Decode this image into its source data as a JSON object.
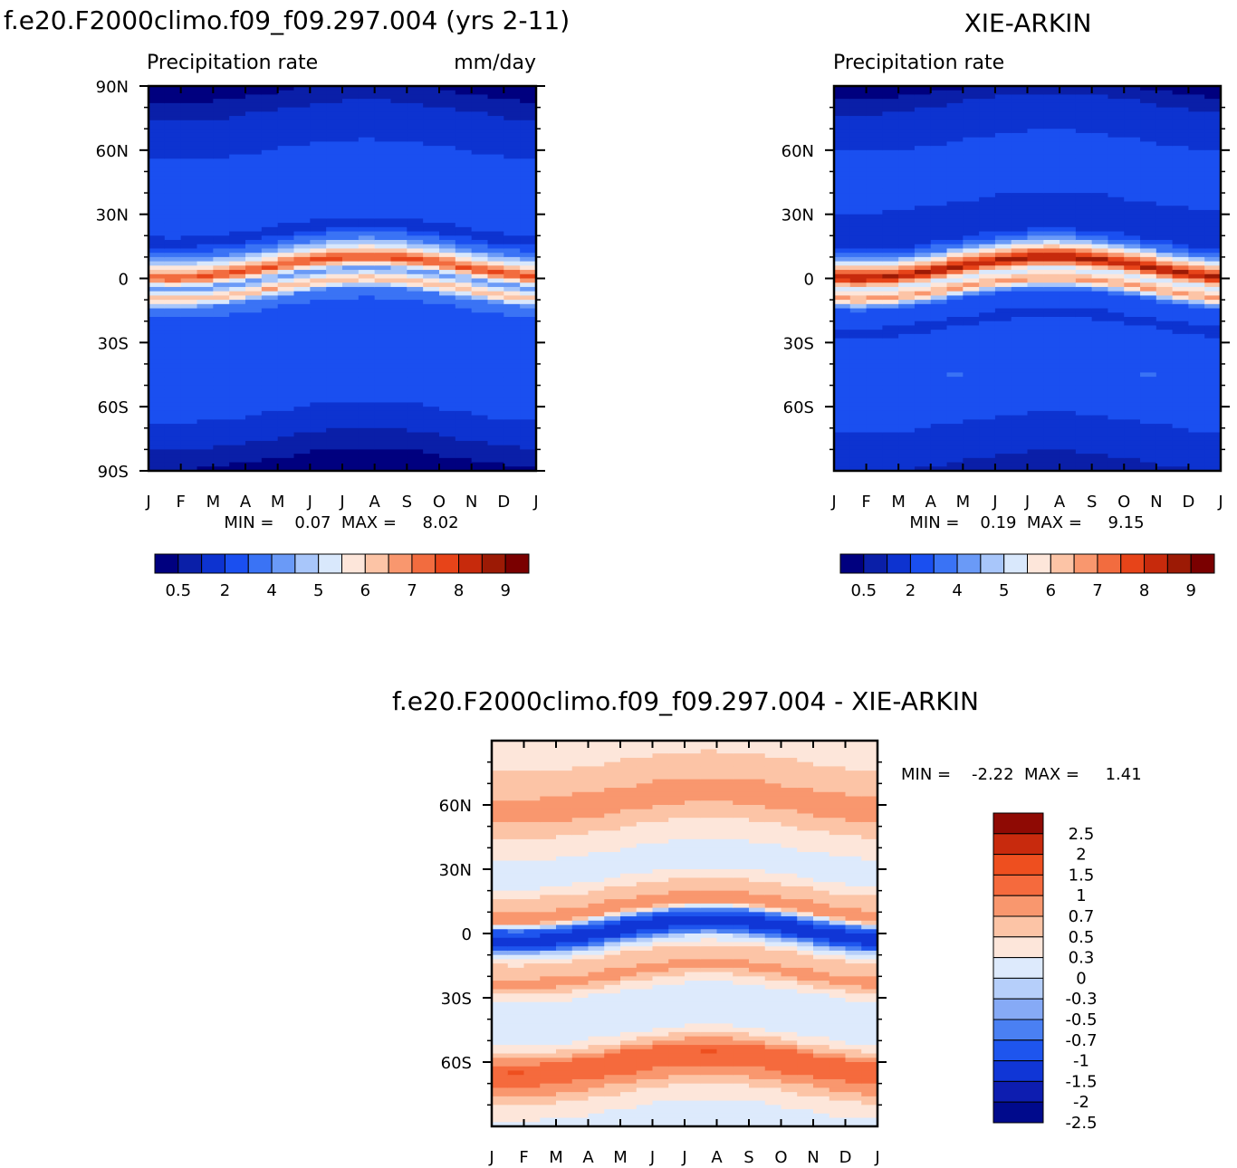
{
  "colors": {
    "precip_scale": [
      "#00007f",
      "#0a1fa8",
      "#0d33d0",
      "#1a4ff0",
      "#3a73f5",
      "#6a9af7",
      "#a8c6fa",
      "#d9e8fc",
      "#fde6da",
      "#fcc4a6",
      "#f9976e",
      "#f26c3f",
      "#e74419",
      "#c72a0c",
      "#9c1a05",
      "#7a0000"
    ],
    "diff_scale": [
      "#000a8c",
      "#0d1db0",
      "#1036d6",
      "#1e55ee",
      "#4a80f3",
      "#86aaf6",
      "#b6cffa",
      "#ddeafc",
      "#fde6da",
      "#fcc4a6",
      "#f9976e",
      "#f56a3d",
      "#ee4f1f",
      "#c82a0d",
      "#8f0a04"
    ],
    "frame": "#000000"
  },
  "chart_data": [
    {
      "id": "model",
      "type": "heatmap",
      "title": "f.e20.F2000climo.f09_f09.297.004 (yrs 2-11)",
      "subtitle_left": "Precipitation rate",
      "subtitle_right": "mm/day",
      "x_ticks": [
        "J",
        "F",
        "M",
        "A",
        "M",
        "J",
        "J",
        "A",
        "S",
        "O",
        "N",
        "D",
        "J"
      ],
      "y_ticks": [
        "90N",
        "60N",
        "30N",
        "0",
        "30S",
        "60S",
        "90S"
      ],
      "stats_text": "MIN =    0.07  MAX =     8.02",
      "min": 0.07,
      "max": 8.02,
      "colorbar_labels": [
        "0.5",
        "2",
        "4",
        "5",
        "6",
        "7",
        "8",
        "9"
      ],
      "color_levels": [
        0.5,
        1,
        2,
        3,
        4,
        4.5,
        5,
        5.5,
        6,
        6.5,
        7,
        7.5,
        8,
        8.5,
        9
      ],
      "latitude_profile": {
        "lat": [
          90,
          75,
          60,
          45,
          30,
          20,
          10,
          5,
          0,
          -5,
          -10,
          -20,
          -30,
          -45,
          -60,
          -75,
          -90
        ],
        "value": [
          0.3,
          1.2,
          2.0,
          2.7,
          2.3,
          1.8,
          5.5,
          7.8,
          4.0,
          6.5,
          3.5,
          2.2,
          2.3,
          2.8,
          2.2,
          1.0,
          0.2
        ]
      }
    },
    {
      "id": "obs",
      "type": "heatmap",
      "title": "XIE-ARKIN",
      "subtitle_left": "Precipitation rate",
      "subtitle_right": "",
      "x_ticks": [
        "J",
        "F",
        "M",
        "A",
        "M",
        "J",
        "J",
        "A",
        "S",
        "O",
        "N",
        "D",
        "J"
      ],
      "y_ticks": [
        "60N",
        "30N",
        "0",
        "30S",
        "60S"
      ],
      "stats_text": "MIN =    0.19  MAX =     9.15",
      "min": 0.19,
      "max": 9.15,
      "colorbar_labels": [
        "0.5",
        "2",
        "4",
        "5",
        "6",
        "7",
        "8",
        "9"
      ],
      "color_levels": [
        0.5,
        1,
        2,
        3,
        4,
        4.5,
        5,
        5.5,
        6,
        6.5,
        7,
        7.5,
        8,
        8.5,
        9
      ],
      "latitude_profile": {
        "lat": [
          90,
          75,
          60,
          45,
          30,
          20,
          10,
          5,
          0,
          -5,
          -10,
          -20,
          -30,
          -45,
          -60,
          -75,
          -90
        ],
        "value": [
          0.4,
          1.5,
          2.2,
          2.5,
          1.7,
          1.3,
          6.0,
          8.8,
          5.0,
          6.8,
          3.0,
          1.8,
          2.5,
          3.0,
          2.5,
          1.5,
          0.8
        ]
      }
    },
    {
      "id": "diff",
      "type": "heatmap",
      "title": "f.e20.F2000climo.f09_f09.297.004 - XIE-ARKIN",
      "subtitle_left": "",
      "subtitle_right": "",
      "x_ticks": [
        "J",
        "F",
        "M",
        "A",
        "M",
        "J",
        "J",
        "A",
        "S",
        "O",
        "N",
        "D",
        "J"
      ],
      "y_ticks": [
        "60N",
        "30N",
        "0",
        "30S",
        "60S"
      ],
      "stats_text": "MIN =    -2.22  MAX =     1.41",
      "min": -2.22,
      "max": 1.41,
      "colorbar_labels": [
        "2.5",
        "2",
        "1.5",
        "1",
        "0.7",
        "0.5",
        "0.3",
        "0",
        "-0.3",
        "-0.5",
        "-0.7",
        "-1",
        "-1.5",
        "-2",
        "-2.5"
      ],
      "color_levels": [
        -2.5,
        -2,
        -1.5,
        -1,
        -0.7,
        -0.5,
        -0.3,
        0,
        0.3,
        0.5,
        0.7,
        1,
        1.5,
        2,
        2.5
      ],
      "latitude_profile": {
        "lat": [
          90,
          75,
          60,
          45,
          30,
          20,
          10,
          5,
          0,
          -5,
          -10,
          -20,
          -30,
          -45,
          -60,
          -75,
          -90
        ],
        "value": [
          0.1,
          0.4,
          0.6,
          0.2,
          -0.3,
          0.4,
          0.6,
          -1.4,
          -1.8,
          -0.4,
          0.3,
          0.6,
          -0.2,
          -0.2,
          1.0,
          0.3,
          -0.3
        ]
      }
    }
  ]
}
